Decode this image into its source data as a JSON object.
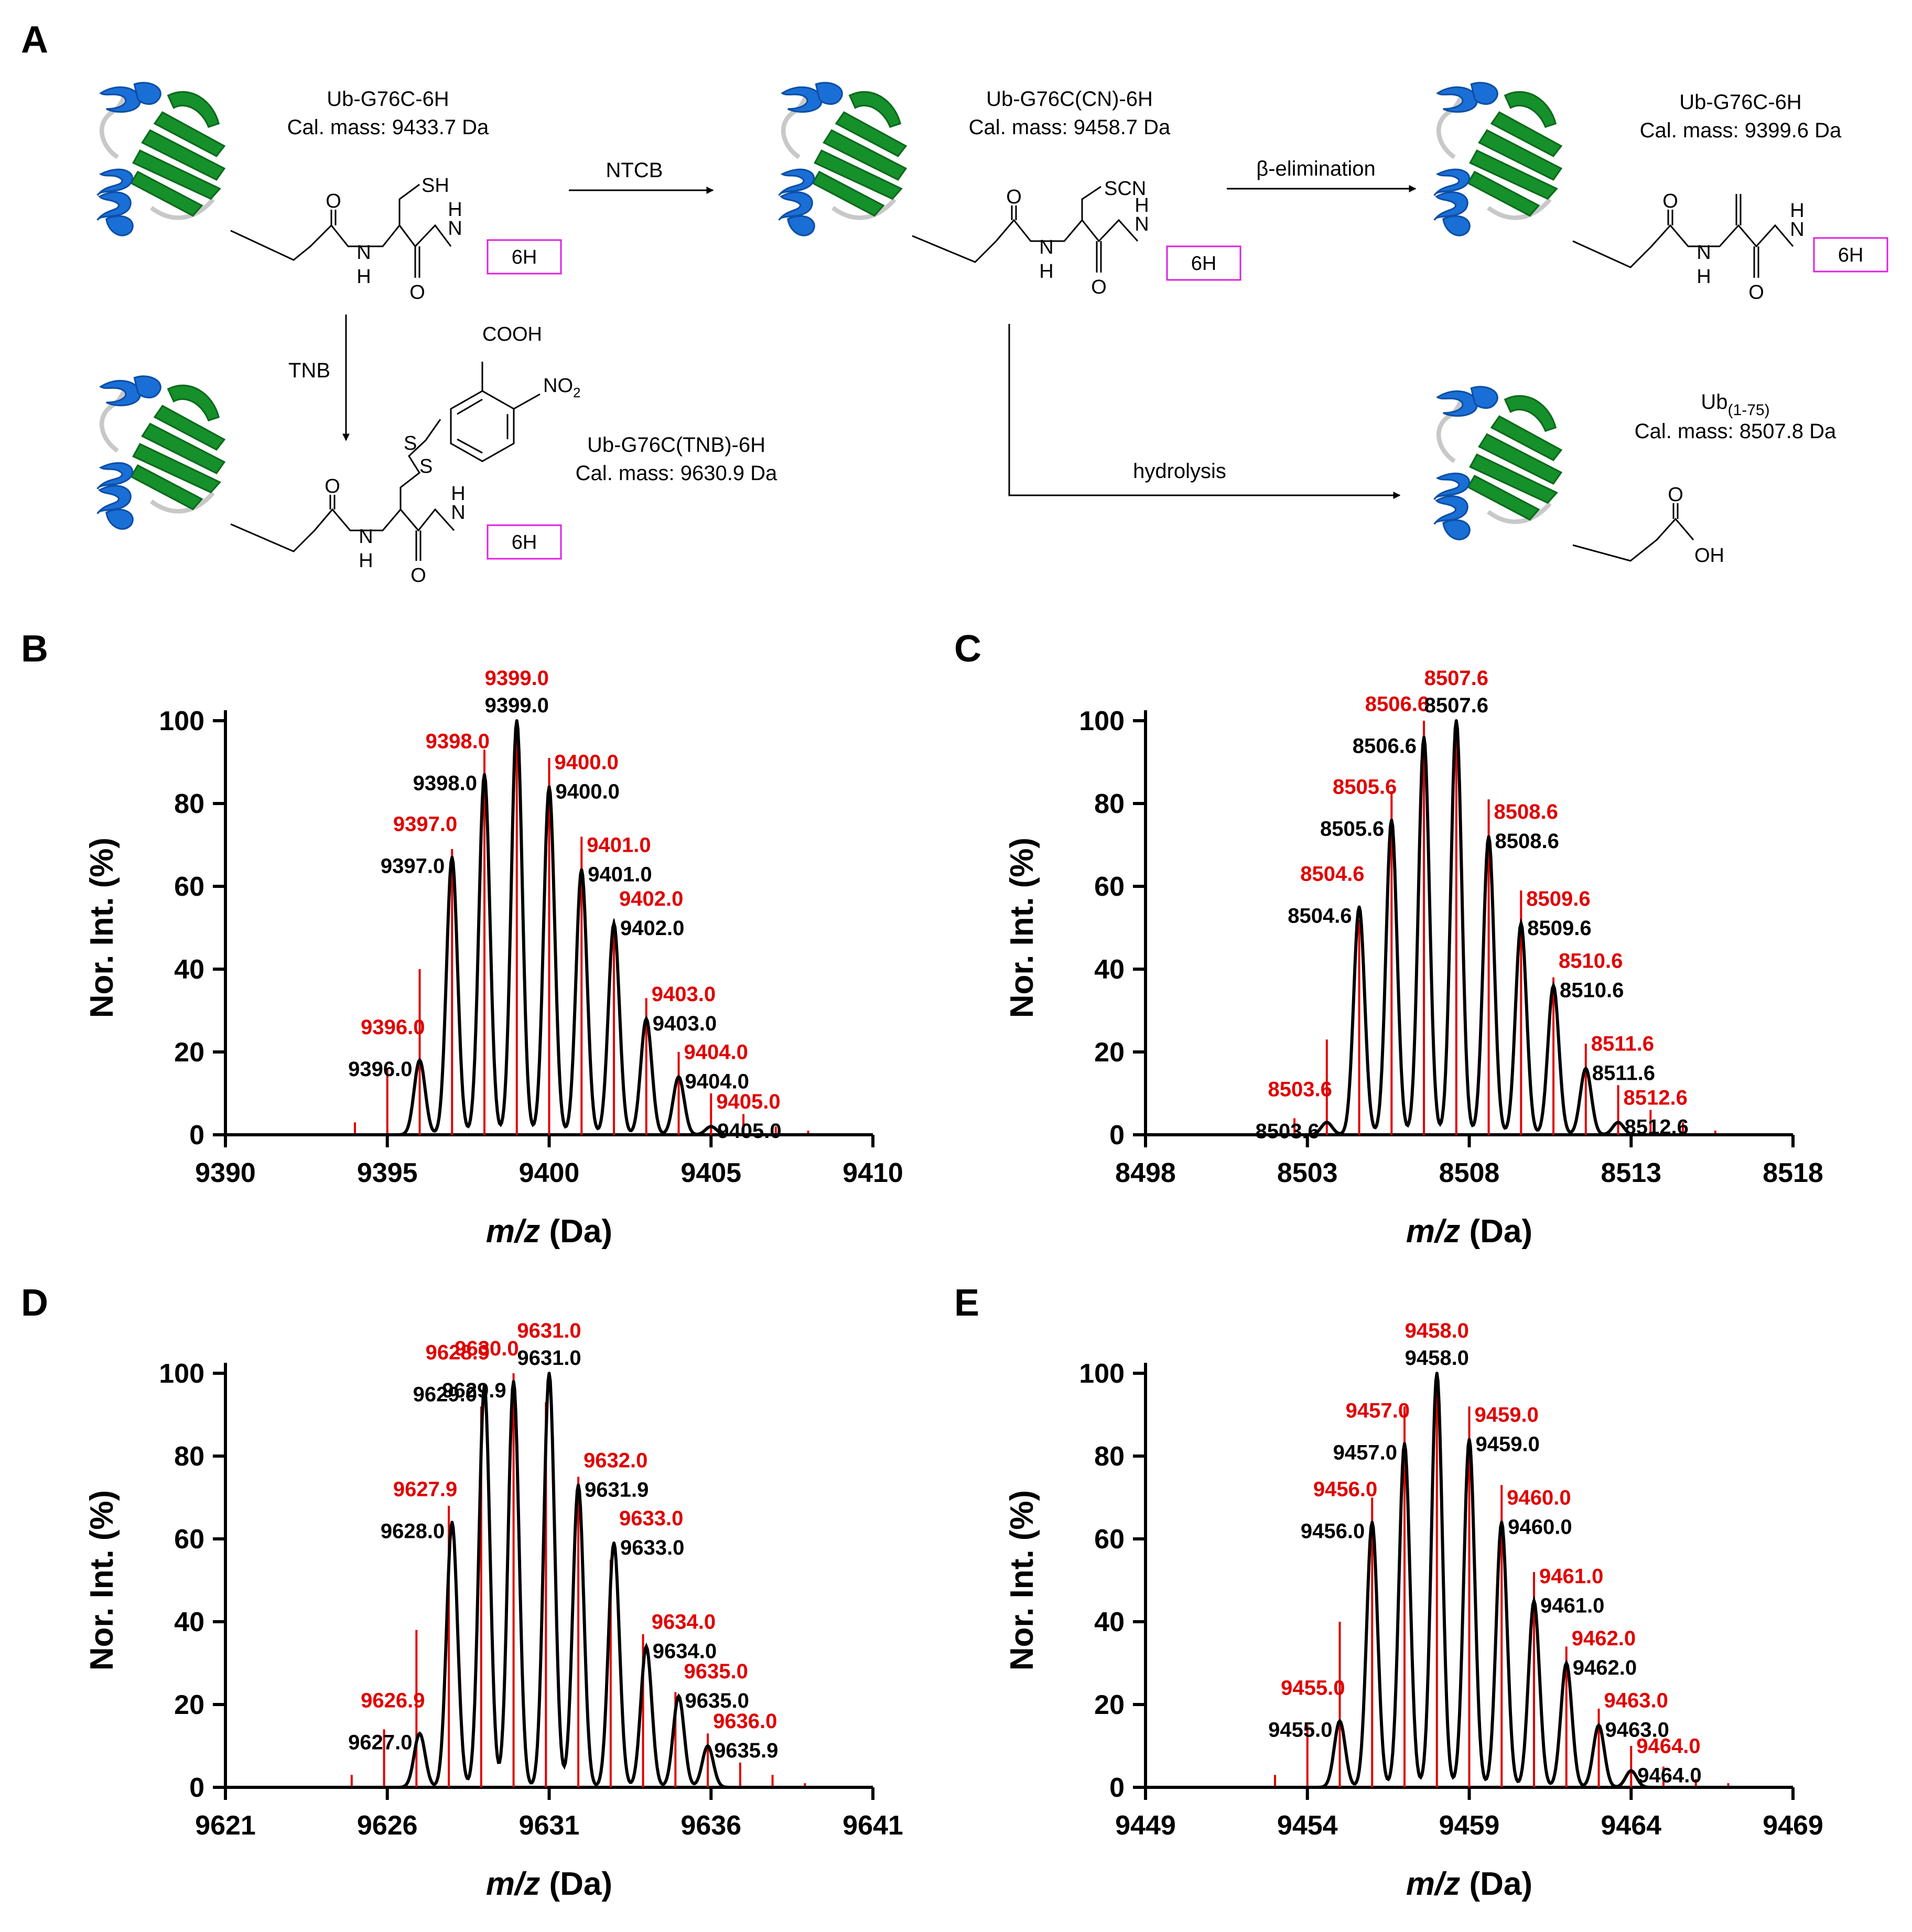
{
  "panels": {
    "A": "A",
    "B": "B",
    "C": "C",
    "D": "D",
    "E": "E"
  },
  "scheme": {
    "tag": "6H",
    "compounds": {
      "start": {
        "name": "Ub-G76C-6H",
        "mass": "Cal. mass: 9433.7 Da",
        "group": "SH"
      },
      "cn": {
        "name": "Ub-G76C(CN)-6H",
        "mass": "Cal. mass: 9458.7 Da",
        "group": "SCN"
      },
      "elim": {
        "name": "Ub-G76C-6H",
        "mass": "Cal. mass: 9399.6 Da"
      },
      "tnb": {
        "name": "Ub-G76C(TNB)-6H",
        "mass": "Cal. mass: 9630.9 Da",
        "cooh": "COOH",
        "no2": "NO",
        "no2_sub": "2",
        "s1": "S",
        "s2": "S"
      },
      "hyd": {
        "name": "Ub",
        "name_sub": "(1-75)",
        "mass": "Cal. mass: 8507.8 Da",
        "oh": "OH"
      }
    },
    "atoms": {
      "O": "O",
      "H": "H",
      "N": "N"
    },
    "arrows": {
      "ntcb": "NTCB",
      "beta": "β-elimination",
      "tnb": "TNB",
      "hydrolysis": "hydrolysis"
    },
    "colors": {
      "helix": "#1a6fd6",
      "sheet": "#15902a",
      "loop": "#c8c8c8",
      "tag_border": "#e020e0"
    }
  },
  "chart_data": [
    {
      "id": "B",
      "type": "line",
      "xlabel_italic": "m/z",
      "xlabel_rest": " (Da)",
      "ylabel": "Nor. Int. (%)",
      "xlim": [
        9390,
        9410
      ],
      "ylim": [
        0,
        100
      ],
      "x_ticks": [
        "9390",
        "9395",
        "9400",
        "9405",
        "9410"
      ],
      "y_ticks": [
        "0",
        "20",
        "40",
        "60",
        "80",
        "100"
      ],
      "colors": {
        "theoretical": "#e00000",
        "measured": "#000000"
      },
      "theoretical_sticks": {
        "x": [
          9394,
          9395,
          9396,
          9397,
          9398,
          9399,
          9400,
          9401,
          9402,
          9403,
          9404,
          9405,
          9406,
          9407,
          9408
        ],
        "y": [
          3,
          16,
          40,
          69,
          93,
          100,
          91,
          72,
          52,
          33,
          20,
          10,
          5,
          2,
          1
        ]
      },
      "measured_peaks": {
        "x": [
          9396,
          9397,
          9398,
          9399,
          9400,
          9401,
          9402,
          9403,
          9404,
          9405
        ],
        "y": [
          18,
          67,
          87,
          100,
          84,
          64,
          51,
          28,
          14,
          2
        ]
      },
      "red_labels": [
        "9396.0",
        "9397.0",
        "9398.0",
        "9399.0",
        "9400.0",
        "9401.0",
        "9402.0",
        "9403.0",
        "9404.0",
        "9405.0"
      ],
      "black_labels": [
        "9396.0",
        "9397.0",
        "9398.0",
        "9399.0",
        "9400.0",
        "9401.0",
        "9402.0",
        "9403.0",
        "9404.0",
        "9405.0"
      ]
    },
    {
      "id": "C",
      "type": "line",
      "xlabel_italic": "m/z",
      "xlabel_rest": " (Da)",
      "ylabel": "Nor. Int. (%)",
      "xlim": [
        8498,
        8518
      ],
      "ylim": [
        0,
        100
      ],
      "x_ticks": [
        "8498",
        "8503",
        "8508",
        "8513",
        "8518"
      ],
      "y_ticks": [
        "0",
        "20",
        "40",
        "60",
        "80",
        "100"
      ],
      "colors": {
        "theoretical": "#e00000",
        "measured": "#000000"
      },
      "theoretical_sticks": {
        "x": [
          8502.6,
          8503.6,
          8504.6,
          8505.6,
          8506.6,
          8507.6,
          8508.6,
          8509.6,
          8510.6,
          8511.6,
          8512.6,
          8513.6,
          8514.6,
          8515.6
        ],
        "y": [
          4,
          23,
          52,
          83,
          100,
          96,
          81,
          59,
          38,
          22,
          12,
          6,
          3,
          1
        ]
      },
      "measured_peaks": {
        "x": [
          8503.6,
          8504.6,
          8505.6,
          8506.6,
          8507.6,
          8508.6,
          8509.6,
          8510.6,
          8511.6,
          8512.6
        ],
        "y": [
          3,
          55,
          76,
          96,
          100,
          72,
          51,
          36,
          16,
          3
        ]
      },
      "red_labels": [
        "8503.6",
        "8504.6",
        "8505.6",
        "8506.6",
        "8507.6",
        "8508.6",
        "8509.6",
        "8510.6",
        "8511.6",
        "8512.6"
      ],
      "black_labels": [
        "8503.6",
        "8504.6",
        "8505.6",
        "8506.6",
        "8507.6",
        "8508.6",
        "8509.6",
        "8510.6",
        "8511.6",
        "8512.6"
      ]
    },
    {
      "id": "D",
      "type": "line",
      "xlabel_italic": "m/z",
      "xlabel_rest": " (Da)",
      "ylabel": "Nor. Int. (%)",
      "xlim": [
        9621,
        9641
      ],
      "ylim": [
        0,
        100
      ],
      "x_ticks": [
        "9621",
        "9626",
        "9631",
        "9636",
        "9641"
      ],
      "y_ticks": [
        "0",
        "20",
        "40",
        "60",
        "80",
        "100"
      ],
      "colors": {
        "theoretical": "#e00000",
        "measured": "#000000"
      },
      "theoretical_sticks": {
        "x": [
          9624.9,
          9625.9,
          9626.9,
          9627.9,
          9628.9,
          9629.9,
          9630.9,
          9631.9,
          9632.9,
          9633.9,
          9634.9,
          9635.9,
          9636.9,
          9637.9,
          9638.9
        ],
        "y": [
          3,
          14,
          38,
          68,
          92,
          100,
          93,
          75,
          55,
          37,
          23,
          13,
          6,
          3,
          1
        ]
      },
      "measured_peaks": {
        "x": [
          9627.0,
          9628.0,
          9629.0,
          9629.9,
          9631.0,
          9631.9,
          9633.0,
          9634.0,
          9635.0,
          9635.9
        ],
        "y": [
          13,
          64,
          97,
          98,
          100,
          73,
          59,
          34,
          22,
          10
        ]
      },
      "red_labels": [
        "9626.9",
        "9627.9",
        "9628.9",
        "9630.0",
        "9631.0",
        "9632.0",
        "9633.0",
        "9634.0",
        "9635.0",
        "9636.0"
      ],
      "black_labels": [
        "9627.0",
        "9628.0",
        "9629.0",
        "9629.9",
        "9631.0",
        "9631.9",
        "9633.0",
        "9634.0",
        "9635.0",
        "9635.9"
      ]
    },
    {
      "id": "E",
      "type": "line",
      "xlabel_italic": "m/z",
      "xlabel_rest": " (Da)",
      "ylabel": "Nor. Int. (%)",
      "xlim": [
        9449,
        9469
      ],
      "ylim": [
        0,
        100
      ],
      "x_ticks": [
        "9449",
        "9454",
        "9459",
        "9464",
        "9469"
      ],
      "y_ticks": [
        "0",
        "20",
        "40",
        "60",
        "80",
        "100"
      ],
      "colors": {
        "theoretical": "#e00000",
        "measured": "#000000"
      },
      "theoretical_sticks": {
        "x": [
          9453,
          9454,
          9455,
          9456,
          9457,
          9458,
          9459,
          9460,
          9461,
          9462,
          9463,
          9464,
          9465,
          9466,
          9467
        ],
        "y": [
          3,
          15,
          40,
          70,
          92,
          100,
          92,
          73,
          52,
          34,
          19,
          10,
          5,
          2,
          1
        ]
      },
      "measured_peaks": {
        "x": [
          9455,
          9456,
          9457,
          9458,
          9459,
          9460,
          9461,
          9462,
          9463,
          9464
        ],
        "y": [
          16,
          64,
          83,
          100,
          84,
          64,
          45,
          30,
          15,
          4
        ]
      },
      "red_labels": [
        "9455.0",
        "9456.0",
        "9457.0",
        "9458.0",
        "9459.0",
        "9460.0",
        "9461.0",
        "9462.0",
        "9463.0",
        "9464.0"
      ],
      "black_labels": [
        "9455.0",
        "9456.0",
        "9457.0",
        "9458.0",
        "9459.0",
        "9460.0",
        "9461.0",
        "9462.0",
        "9463.0",
        "9464.0"
      ]
    }
  ]
}
